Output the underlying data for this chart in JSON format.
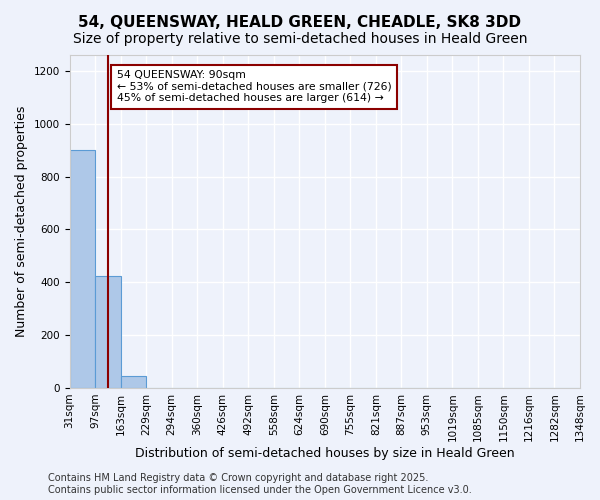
{
  "title": "54, QUEENSWAY, HEALD GREEN, CHEADLE, SK8 3DD",
  "subtitle": "Size of property relative to semi-detached houses in Heald Green",
  "xlabel": "Distribution of semi-detached houses by size in Heald Green",
  "ylabel": "Number of semi-detached properties",
  "bin_labels": [
    "31sqm",
    "97sqm",
    "163sqm",
    "229sqm",
    "294sqm",
    "360sqm",
    "426sqm",
    "492sqm",
    "558sqm",
    "624sqm",
    "690sqm",
    "755sqm",
    "821sqm",
    "887sqm",
    "953sqm",
    "1019sqm",
    "1085sqm",
    "1150sqm",
    "1216sqm",
    "1282sqm",
    "1348sqm"
  ],
  "values": [
    900,
    425,
    45,
    0,
    0,
    0,
    0,
    0,
    0,
    0,
    0,
    0,
    0,
    0,
    0,
    0,
    0,
    0,
    0,
    0
  ],
  "bar_color": "#aec8e8",
  "bar_edge_color": "#5b9bd5",
  "property_bin_index": 1,
  "property_line_color": "#8b0000",
  "annotation_text": "54 QUEENSWAY: 90sqm\n← 53% of semi-detached houses are smaller (726)\n45% of semi-detached houses are larger (614) →",
  "annotation_box_color": "#ffffff",
  "annotation_box_edge_color": "#8b0000",
  "ylim": [
    0,
    1260
  ],
  "yticks": [
    0,
    200,
    400,
    600,
    800,
    1000,
    1200
  ],
  "footer_text": "Contains HM Land Registry data © Crown copyright and database right 2025.\nContains public sector information licensed under the Open Government Licence v3.0.",
  "background_color": "#eef2fb",
  "grid_color": "#ffffff",
  "title_fontsize": 11,
  "subtitle_fontsize": 10,
  "axis_label_fontsize": 9,
  "tick_fontsize": 7.5,
  "footer_fontsize": 7
}
